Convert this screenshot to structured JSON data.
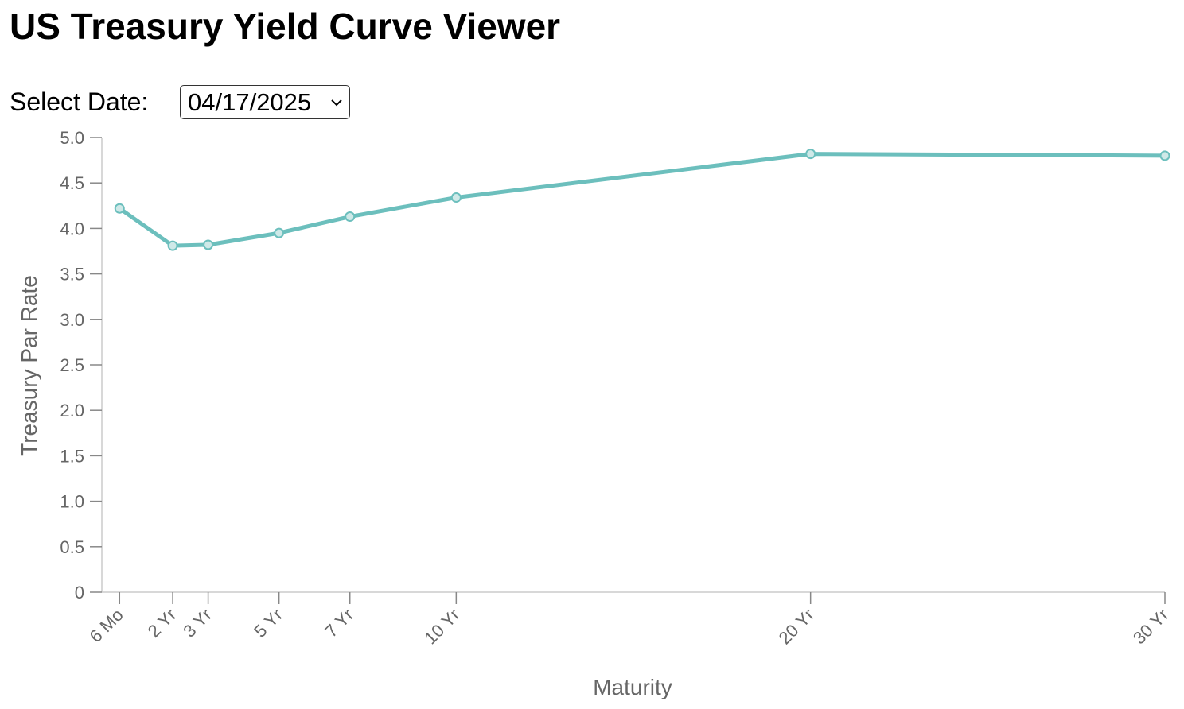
{
  "header": {
    "title": "US Treasury Yield Curve Viewer"
  },
  "controls": {
    "label": "Select Date:",
    "selected": "04/17/2025"
  },
  "chart_data": {
    "type": "line",
    "x_label": "Maturity",
    "y_label": "Treasury Par Rate",
    "x": [
      0.5,
      2,
      3,
      5,
      7,
      10,
      20,
      30
    ],
    "values": [
      4.22,
      3.81,
      3.82,
      3.95,
      4.13,
      4.34,
      4.82,
      4.8
    ],
    "color": "#6cbfbd",
    "xlim": [
      0,
      30
    ],
    "xticks": [
      {
        "value": 0.5,
        "label": "6 Mo"
      },
      {
        "value": 2,
        "label": "2 Yr"
      },
      {
        "value": 3,
        "label": "3 Yr"
      },
      {
        "value": 5,
        "label": "5 Yr"
      },
      {
        "value": 7,
        "label": "7 Yr"
      },
      {
        "value": 10,
        "label": "10 Yr"
      },
      {
        "value": 20,
        "label": "20 Yr"
      },
      {
        "value": 30,
        "label": "30 Yr"
      }
    ],
    "ylim": [
      0,
      5
    ],
    "yticks": [
      0,
      0.5,
      {
        "value": 1,
        "label": "1.0"
      },
      1.5,
      {
        "value": 2,
        "label": "2.0"
      },
      2.5,
      {
        "value": 3,
        "label": "3.0"
      },
      3.5,
      {
        "value": 4,
        "label": "4.0"
      },
      4.5,
      {
        "value": 5,
        "label": "5.0"
      }
    ],
    "grid": false
  }
}
